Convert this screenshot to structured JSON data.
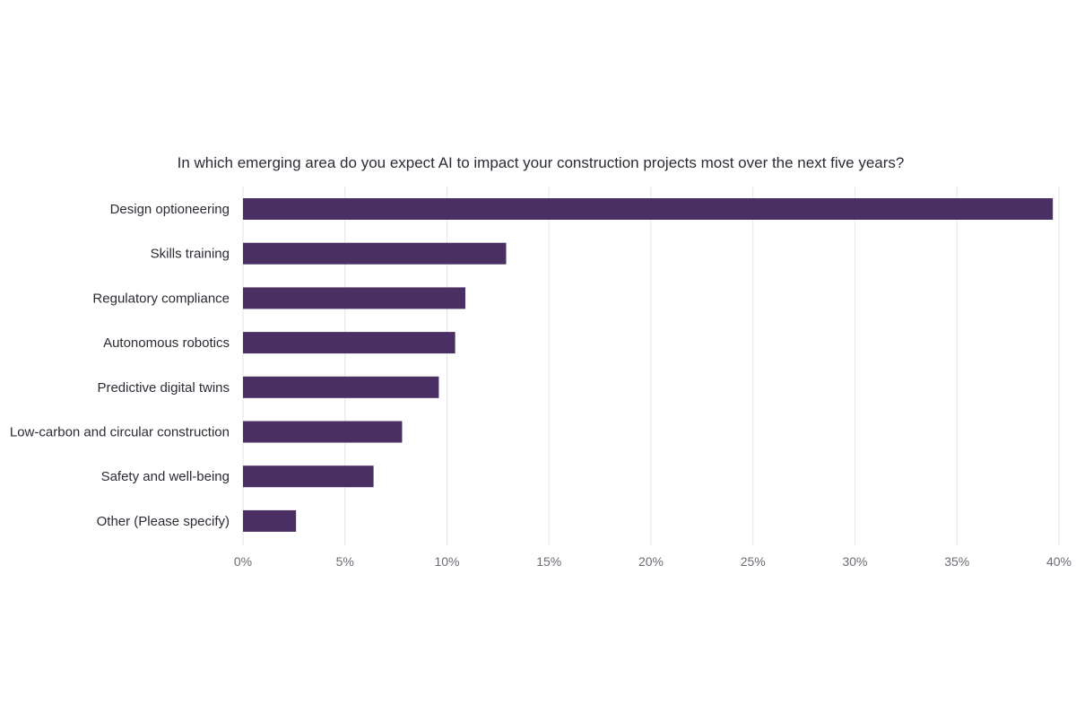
{
  "chart_data": {
    "type": "bar",
    "orientation": "horizontal",
    "title": "In which emerging area do you expect AI to impact your construction projects most over the next five years?",
    "xlabel": "",
    "ylabel": "",
    "categories": [
      "Design optioneering",
      "Skills training",
      "Regulatory compliance",
      "Autonomous robotics",
      "Predictive digital twins",
      "Low-carbon and circular construction",
      "Safety and well-being",
      "Other (Please specify)"
    ],
    "values": [
      39.7,
      12.9,
      10.9,
      10.4,
      9.6,
      7.8,
      6.4,
      2.6
    ],
    "xlim": [
      0,
      40
    ],
    "xticks": [
      0,
      5,
      10,
      15,
      20,
      25,
      30,
      35,
      40
    ],
    "xtick_labels": [
      "0%",
      "5%",
      "10%",
      "15%",
      "20%",
      "25%",
      "30%",
      "35%",
      "40%"
    ],
    "bar_color": "#4a2f63",
    "grid": true,
    "legend": "none"
  }
}
